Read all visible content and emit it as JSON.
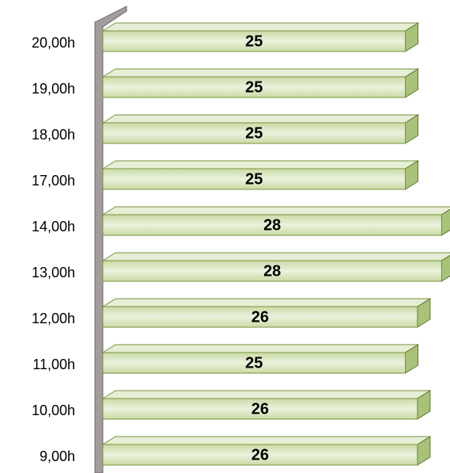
{
  "chart_data": {
    "type": "bar3d",
    "categories": [
      "20,00h",
      "19,00h",
      "18,00h",
      "17,00h",
      "14,00h",
      "13,00h",
      "12,00h",
      "11,00h",
      "10,00h",
      "9,00h"
    ],
    "values": [
      25,
      25,
      25,
      25,
      28,
      28,
      26,
      25,
      26,
      26
    ],
    "color": "#d7e4bd"
  }
}
